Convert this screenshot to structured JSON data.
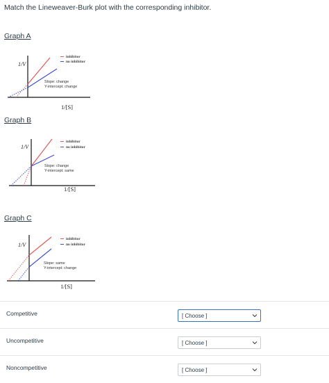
{
  "prompt": "Match the Lineweaver-Burk plot with the corresponding inhibitor.",
  "graphs": [
    {
      "title": "Graph A",
      "y_label": "1/V",
      "x_label": "1/[S]",
      "legend": [
        "inhibitor",
        "no inhibitor"
      ],
      "note_slope": "Slope: change",
      "note_intercept": "Y-intercept: change",
      "colors": {
        "inhibitor": "#e05a5a",
        "no_inhibitor": "#3d4fcf"
      }
    },
    {
      "title": "Graph B",
      "y_label": "1/V",
      "x_label": "1/[S]",
      "legend": [
        "inhibitor",
        "no inhibitor"
      ],
      "note_slope": "Slope: change",
      "note_intercept": "Y-intercept: same",
      "colors": {
        "inhibitor": "#e05a5a",
        "no_inhibitor": "#3d4fcf"
      }
    },
    {
      "title": "Graph C",
      "y_label": "1/V",
      "x_label": "1/[S]",
      "legend": [
        "inhibitor",
        "no inhibitor"
      ],
      "note_slope": "Slope: same",
      "note_intercept": "Y-intercept: change",
      "colors": {
        "inhibitor": "#e05a5a",
        "no_inhibitor": "#3d4fcf"
      }
    }
  ],
  "matches": [
    {
      "label": "Competitive",
      "select_value": "[ Choose ]"
    },
    {
      "label": "Uncompetitive",
      "select_value": "[ Choose ]"
    },
    {
      "label": "Noncompetitive",
      "select_value": "[ Choose ]"
    }
  ]
}
